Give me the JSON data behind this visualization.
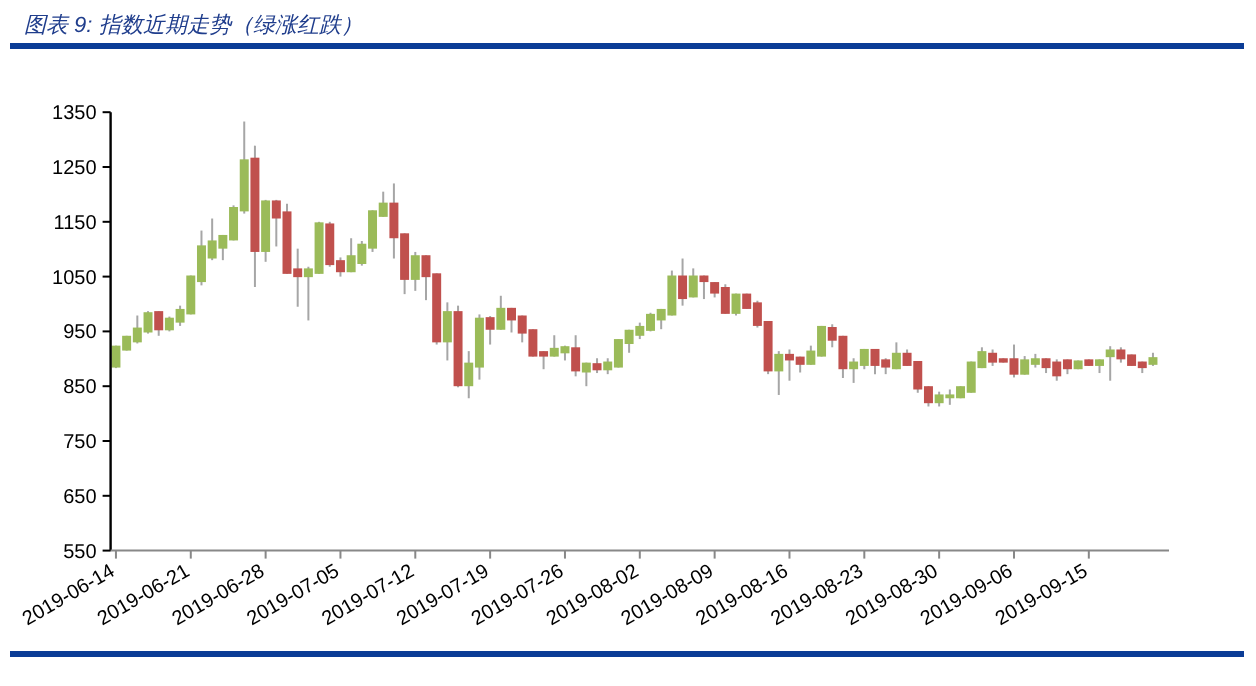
{
  "chart_data": {
    "type": "candlestick",
    "title": "图表 9: 指数近期走势（绿涨红跌）",
    "categories": [
      "2019-06-14",
      null,
      null,
      null,
      null,
      null,
      null,
      "2019-06-21",
      null,
      null,
      null,
      null,
      null,
      null,
      "2019-06-28",
      null,
      null,
      null,
      null,
      null,
      null,
      "2019-07-05",
      null,
      null,
      null,
      null,
      null,
      null,
      "2019-07-12",
      null,
      null,
      null,
      null,
      null,
      null,
      "2019-07-19",
      null,
      null,
      null,
      null,
      null,
      null,
      "2019-07-26",
      null,
      null,
      null,
      null,
      null,
      null,
      "2019-08-02",
      null,
      null,
      null,
      null,
      null,
      null,
      "2019-08-09",
      null,
      null,
      null,
      null,
      null,
      null,
      "2019-08-16",
      null,
      null,
      null,
      null,
      null,
      null,
      "2019-08-23",
      null,
      null,
      null,
      null,
      null,
      null,
      "2019-08-30",
      null,
      null,
      null,
      null,
      null,
      null,
      "2019-09-06",
      null,
      null,
      null,
      null,
      null,
      null,
      "2019-09-15",
      null,
      null,
      null,
      null,
      null,
      null
    ],
    "ohlc": [
      [
        884,
        924,
        883,
        924
      ],
      [
        915,
        942,
        915,
        942
      ],
      [
        930,
        979,
        928,
        957
      ],
      [
        948,
        987,
        946,
        985
      ],
      [
        987,
        987,
        942,
        952
      ],
      [
        952,
        977,
        950,
        975
      ],
      [
        966,
        997,
        960,
        991
      ],
      [
        981,
        1052,
        981,
        1052
      ],
      [
        1040,
        1134,
        1034,
        1107
      ],
      [
        1083,
        1156,
        1080,
        1116
      ],
      [
        1101,
        1126,
        1080,
        1126
      ],
      [
        1116,
        1180,
        1116,
        1177
      ],
      [
        1169,
        1333,
        1165,
        1264
      ],
      [
        1267,
        1289,
        1031,
        1095
      ],
      [
        1095,
        1190,
        1077,
        1189
      ],
      [
        1189,
        1190,
        1105,
        1156
      ],
      [
        1169,
        1183,
        1055,
        1055
      ],
      [
        1065,
        1101,
        995,
        1049
      ],
      [
        1049,
        1068,
        970,
        1065
      ],
      [
        1055,
        1150,
        1055,
        1149
      ],
      [
        1147,
        1150,
        1068,
        1071
      ],
      [
        1080,
        1085,
        1050,
        1058
      ],
      [
        1058,
        1120,
        1058,
        1089
      ],
      [
        1073,
        1115,
        1070,
        1110
      ],
      [
        1101,
        1171,
        1095,
        1171
      ],
      [
        1159,
        1205,
        1159,
        1185
      ],
      [
        1185,
        1220,
        1083,
        1120
      ],
      [
        1129,
        1129,
        1018,
        1044
      ],
      [
        1044,
        1095,
        1024,
        1089
      ],
      [
        1089,
        1089,
        1007,
        1049
      ],
      [
        1056,
        1056,
        926,
        930
      ],
      [
        930,
        1003,
        897,
        987
      ],
      [
        987,
        997,
        848,
        850
      ],
      [
        850,
        914,
        828,
        893
      ],
      [
        884,
        981,
        862,
        975
      ],
      [
        976,
        978,
        926,
        953
      ],
      [
        953,
        1015,
        953,
        993
      ],
      [
        993,
        993,
        948,
        970
      ],
      [
        979,
        979,
        930,
        946
      ],
      [
        954,
        954,
        904,
        904
      ],
      [
        914,
        914,
        881,
        904
      ],
      [
        904,
        943,
        904,
        920
      ],
      [
        910,
        924,
        897,
        923
      ],
      [
        921,
        943,
        868,
        877
      ],
      [
        875,
        893,
        850,
        893
      ],
      [
        892,
        901,
        874,
        879
      ],
      [
        879,
        901,
        872,
        895
      ],
      [
        884,
        936,
        884,
        936
      ],
      [
        927,
        953,
        911,
        953
      ],
      [
        942,
        966,
        936,
        960
      ],
      [
        951,
        984,
        950,
        982
      ],
      [
        970,
        991,
        954,
        991
      ],
      [
        979,
        1061,
        979,
        1052
      ],
      [
        1052,
        1083,
        997,
        1009
      ],
      [
        1012,
        1065,
        1012,
        1052
      ],
      [
        1052,
        1052,
        1009,
        1040
      ],
      [
        1040,
        1040,
        1012,
        1019
      ],
      [
        1031,
        1036,
        982,
        982
      ],
      [
        982,
        1019,
        979,
        1019
      ],
      [
        1019,
        1019,
        991,
        991
      ],
      [
        1003,
        1006,
        957,
        960
      ],
      [
        969,
        969,
        872,
        877
      ],
      [
        877,
        914,
        834,
        909
      ],
      [
        909,
        917,
        860,
        897
      ],
      [
        904,
        904,
        875,
        889
      ],
      [
        889,
        924,
        889,
        915
      ],
      [
        904,
        960,
        904,
        960
      ],
      [
        958,
        963,
        921,
        933
      ],
      [
        942,
        942,
        865,
        881
      ],
      [
        881,
        901,
        856,
        895
      ],
      [
        887,
        918,
        881,
        918
      ],
      [
        918,
        918,
        872,
        887
      ],
      [
        899,
        901,
        872,
        884
      ],
      [
        881,
        930,
        881,
        911
      ],
      [
        911,
        917,
        887,
        887
      ],
      [
        896,
        896,
        838,
        844
      ],
      [
        850,
        850,
        813,
        819
      ],
      [
        819,
        840,
        813,
        835
      ],
      [
        828,
        844,
        816,
        835
      ],
      [
        828,
        850,
        828,
        850
      ],
      [
        838,
        895,
        838,
        895
      ],
      [
        883,
        921,
        883,
        914
      ],
      [
        911,
        917,
        887,
        893
      ],
      [
        901,
        901,
        893,
        893
      ],
      [
        901,
        926,
        866,
        871
      ],
      [
        871,
        905,
        871,
        899
      ],
      [
        889,
        909,
        884,
        901
      ],
      [
        901,
        901,
        874,
        883
      ],
      [
        895,
        899,
        860,
        868
      ],
      [
        899,
        899,
        872,
        881
      ],
      [
        881,
        897,
        881,
        897
      ],
      [
        899,
        899,
        887,
        887
      ],
      [
        887,
        899,
        874,
        899
      ],
      [
        903,
        923,
        860,
        917
      ],
      [
        917,
        921,
        893,
        899
      ],
      [
        908,
        908,
        887,
        887
      ],
      [
        895,
        895,
        874,
        883
      ],
      [
        889,
        911,
        887,
        903
      ]
    ],
    "colors": [
      "#9bbb59",
      "#9bbb59",
      "#9bbb59",
      "#9bbb59",
      "#c0504d",
      "#9bbb59",
      "#9bbb59",
      "#9bbb59",
      "#9bbb59",
      "#9bbb59",
      "#9bbb59",
      "#9bbb59",
      "#9bbb59",
      "#c0504d",
      "#9bbb59",
      "#c0504d",
      "#c0504d",
      "#c0504d",
      "#9bbb59",
      "#9bbb59",
      "#c0504d",
      "#c0504d",
      "#9bbb59",
      "#9bbb59",
      "#9bbb59",
      "#9bbb59",
      "#c0504d",
      "#c0504d",
      "#9bbb59",
      "#c0504d",
      "#c0504d",
      "#9bbb59",
      "#c0504d",
      "#9bbb59",
      "#9bbb59",
      "#c0504d",
      "#9bbb59",
      "#c0504d",
      "#c0504d",
      "#c0504d",
      "#c0504d",
      "#9bbb59",
      "#9bbb59",
      "#c0504d",
      "#9bbb59",
      "#c0504d",
      "#9bbb59",
      "#9bbb59",
      "#9bbb59",
      "#9bbb59",
      "#9bbb59",
      "#9bbb59",
      "#9bbb59",
      "#c0504d",
      "#9bbb59",
      "#c0504d",
      "#c0504d",
      "#c0504d",
      "#9bbb59",
      "#c0504d",
      "#c0504d",
      "#c0504d",
      "#9bbb59",
      "#c0504d",
      "#c0504d",
      "#9bbb59",
      "#9bbb59",
      "#c0504d",
      "#c0504d",
      "#9bbb59",
      "#9bbb59",
      "#c0504d",
      "#c0504d",
      "#9bbb59",
      "#c0504d",
      "#c0504d",
      "#c0504d",
      "#9bbb59",
      "#9bbb59",
      "#9bbb59",
      "#9bbb59",
      "#9bbb59",
      "#c0504d",
      "#c0504d",
      "#c0504d",
      "#9bbb59",
      "#9bbb59",
      "#c0504d",
      "#c0504d",
      "#c0504d",
      "#9bbb59",
      "#c0504d",
      "#9bbb59",
      "#9bbb59",
      "#c0504d",
      "#c0504d",
      "#c0504d",
      "#9bbb59"
    ],
    "ylim": [
      550,
      1350
    ],
    "yticks": [
      550,
      650,
      750,
      850,
      950,
      1050,
      1150,
      1250,
      1350
    ],
    "grid": false
  }
}
